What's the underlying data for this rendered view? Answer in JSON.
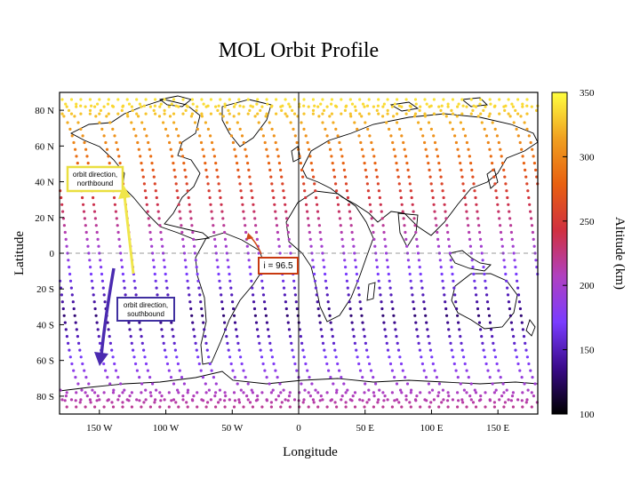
{
  "chart_data": {
    "type": "scatter",
    "title": "MOL Orbit Profile",
    "xlabel": "Longitude",
    "ylabel": "Latitude",
    "colorbar_label": "Altitude (km)",
    "xlim": [
      -180,
      180
    ],
    "ylim": [
      -90,
      90
    ],
    "x_ticks": [
      {
        "value": -150,
        "label": "150 W"
      },
      {
        "value": -100,
        "label": "100 W"
      },
      {
        "value": -50,
        "label": "50 W"
      },
      {
        "value": 0,
        "label": "0"
      },
      {
        "value": 50,
        "label": "50 E"
      },
      {
        "value": 100,
        "label": "100 E"
      },
      {
        "value": 150,
        "label": "150 E"
      }
    ],
    "y_ticks": [
      {
        "value": 80,
        "label": "80 N"
      },
      {
        "value": 60,
        "label": "60 N"
      },
      {
        "value": 40,
        "label": "40 N"
      },
      {
        "value": 20,
        "label": "20 N"
      },
      {
        "value": 0,
        "label": "0"
      },
      {
        "value": -20,
        "label": "20 S"
      },
      {
        "value": -40,
        "label": "40 S"
      },
      {
        "value": -60,
        "label": "60 S"
      },
      {
        "value": -80,
        "label": "80 S"
      }
    ],
    "colorbar": {
      "min": 100,
      "max": 350,
      "ticks": [
        100,
        150,
        200,
        250,
        300,
        350
      ],
      "colormap": [
        "#000000",
        "#3a0a8a",
        "#7a3cff",
        "#b040c0",
        "#d03040",
        "#e86010",
        "#f0a020",
        "#ffff40"
      ]
    },
    "orbit": {
      "inclination_deg": 96.5,
      "tracks_northbound_start_lon": [
        -172,
        -148,
        -124,
        -100,
        -76,
        -52,
        -28,
        -4,
        20,
        44,
        68,
        92,
        116,
        140,
        164
      ],
      "tracks_southbound_start_lon": [
        -160,
        -136,
        -112,
        -88,
        -64,
        -40,
        -16,
        8,
        32,
        56,
        80,
        104,
        128,
        152,
        176
      ],
      "altitude_range_km": [
        130,
        340
      ],
      "perigee_latitude_deg": -35
    },
    "annotations": {
      "northbound": "orbit direction,\nnorthbound",
      "southbound": "orbit direction,\nsouthbound",
      "inclination": "i = 96.5"
    },
    "zero_line": "dashed",
    "annotation_colors": {
      "northbound": "#f0e040",
      "southbound": "#4030a0",
      "inclination": "#d04010"
    }
  }
}
